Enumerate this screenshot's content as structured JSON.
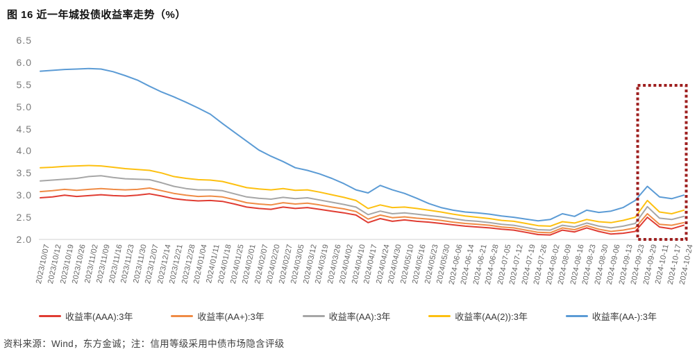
{
  "figure": {
    "title": "图 16 近一年城投债收益率走势（%）",
    "source_note": "资料来源：Wind，东方金诚；注：信用等级采用中债市场隐含评级"
  },
  "ui_colors": {
    "axis_line": "#d9d9d9",
    "y_tick_text": "#7a7a7a",
    "x_tick_text": "#636363",
    "highlight_box": "#9e1f1f"
  },
  "chart_data": {
    "type": "line",
    "title": "图 16 近一年城投债收益率走势（%）",
    "xlabel": "",
    "ylabel": "",
    "ylim": [
      2.0,
      6.5
    ],
    "grid": false,
    "legend_position": "bottom",
    "yticks": [
      "6.5",
      "6.0",
      "5.5",
      "5.0",
      "4.5",
      "4.0",
      "3.5",
      "3.0",
      "2.5",
      "2.0"
    ],
    "x": [
      "2023/10/07",
      "2023/10/12",
      "2023/10/19",
      "2023/10/26",
      "2023/11/02",
      "2023/11/09",
      "2023/11/16",
      "2023/11/23",
      "2023/11/30",
      "2023/12/07",
      "2023/12/14",
      "2023/12/21",
      "2023/12/28",
      "2024/01/04",
      "2024/01/11",
      "2024/01/18",
      "2024/01/25",
      "2024/02/01",
      "2024/02/07",
      "2024/02/20",
      "2024/02/27",
      "2024/03/05",
      "2024/03/12",
      "2024/03/19",
      "2024/03/26",
      "2024/04/02",
      "2024/04/10",
      "2024/04/17",
      "2024/04/24",
      "2024/04/30",
      "2024/05/10",
      "2024/05/16",
      "2024/05/23",
      "2024/05/30",
      "2024-06-06",
      "2024-06-14",
      "2024-06-21",
      "2024-06-28",
      "2024-07-05",
      "2024-07-12",
      "2024-07-19",
      "2024-07-26",
      "2024-08-02",
      "2024-08-09",
      "2024-08-16",
      "2024-08-23",
      "2024-08-30",
      "2024-09-06",
      "2024-09-13",
      "2024-09-23",
      "2024-09-29",
      "2024-10-11",
      "2024-10-17",
      "2024-10-24"
    ],
    "series": [
      {
        "id": "aaa",
        "name": "收益率(AAA):3年",
        "color": "#e03c32",
        "values": [
          2.94,
          2.96,
          3.0,
          2.97,
          2.99,
          3.01,
          2.99,
          2.98,
          3.0,
          3.03,
          2.98,
          2.92,
          2.89,
          2.87,
          2.88,
          2.86,
          2.8,
          2.73,
          2.7,
          2.68,
          2.73,
          2.7,
          2.72,
          2.68,
          2.64,
          2.6,
          2.55,
          2.38,
          2.47,
          2.41,
          2.44,
          2.41,
          2.39,
          2.36,
          2.33,
          2.3,
          2.28,
          2.26,
          2.23,
          2.21,
          2.16,
          2.11,
          2.1,
          2.21,
          2.17,
          2.26,
          2.18,
          2.12,
          2.14,
          2.18,
          2.5,
          2.28,
          2.24,
          2.32
        ]
      },
      {
        "id": "aa-plus",
        "name": "收益率(AA+):3年",
        "color": "#ef8b45",
        "values": [
          3.08,
          3.1,
          3.13,
          3.11,
          3.13,
          3.15,
          3.13,
          3.12,
          3.13,
          3.16,
          3.1,
          3.04,
          3.0,
          2.97,
          2.98,
          2.96,
          2.9,
          2.83,
          2.8,
          2.78,
          2.83,
          2.8,
          2.82,
          2.78,
          2.73,
          2.69,
          2.63,
          2.46,
          2.55,
          2.49,
          2.51,
          2.48,
          2.46,
          2.43,
          2.39,
          2.36,
          2.34,
          2.32,
          2.28,
          2.26,
          2.21,
          2.16,
          2.15,
          2.26,
          2.22,
          2.31,
          2.23,
          2.18,
          2.21,
          2.26,
          2.58,
          2.34,
          2.32,
          2.38
        ]
      },
      {
        "id": "aa",
        "name": "收益率(AA):3年",
        "color": "#a6a6a6",
        "values": [
          3.32,
          3.34,
          3.36,
          3.38,
          3.42,
          3.44,
          3.4,
          3.37,
          3.36,
          3.35,
          3.28,
          3.2,
          3.15,
          3.12,
          3.12,
          3.1,
          3.03,
          2.96,
          2.93,
          2.91,
          2.95,
          2.92,
          2.94,
          2.89,
          2.84,
          2.79,
          2.73,
          2.56,
          2.64,
          2.58,
          2.6,
          2.57,
          2.54,
          2.51,
          2.47,
          2.43,
          2.41,
          2.38,
          2.34,
          2.32,
          2.27,
          2.22,
          2.21,
          2.32,
          2.28,
          2.37,
          2.3,
          2.26,
          2.3,
          2.36,
          2.74,
          2.48,
          2.45,
          2.52
        ]
      },
      {
        "id": "aa2",
        "name": "收益率(AA(2)):3年",
        "color": "#fdc010",
        "values": [
          3.62,
          3.63,
          3.65,
          3.66,
          3.67,
          3.66,
          3.63,
          3.6,
          3.58,
          3.56,
          3.5,
          3.42,
          3.38,
          3.35,
          3.34,
          3.31,
          3.24,
          3.17,
          3.14,
          3.12,
          3.15,
          3.11,
          3.12,
          3.07,
          3.01,
          2.95,
          2.88,
          2.7,
          2.78,
          2.72,
          2.73,
          2.7,
          2.66,
          2.62,
          2.57,
          2.53,
          2.5,
          2.47,
          2.43,
          2.41,
          2.36,
          2.31,
          2.3,
          2.4,
          2.37,
          2.45,
          2.4,
          2.38,
          2.43,
          2.5,
          2.88,
          2.62,
          2.58,
          2.66
        ]
      },
      {
        "id": "aa-minus",
        "name": "收益率(AA-):3年",
        "color": "#5b9bd5",
        "values": [
          5.8,
          5.82,
          5.84,
          5.85,
          5.86,
          5.85,
          5.79,
          5.7,
          5.6,
          5.46,
          5.33,
          5.22,
          5.1,
          4.97,
          4.83,
          4.62,
          4.42,
          4.22,
          4.02,
          3.88,
          3.76,
          3.62,
          3.56,
          3.48,
          3.38,
          3.26,
          3.12,
          3.05,
          3.22,
          3.12,
          3.04,
          2.93,
          2.81,
          2.72,
          2.66,
          2.62,
          2.6,
          2.57,
          2.53,
          2.5,
          2.46,
          2.42,
          2.45,
          2.58,
          2.52,
          2.66,
          2.61,
          2.64,
          2.72,
          2.88,
          3.2,
          2.96,
          2.92,
          3.0
        ]
      }
    ],
    "highlight_box": {
      "start_label": "2024-09-29",
      "end_label": "2024-10-24",
      "color": "#9e1f1f"
    }
  }
}
